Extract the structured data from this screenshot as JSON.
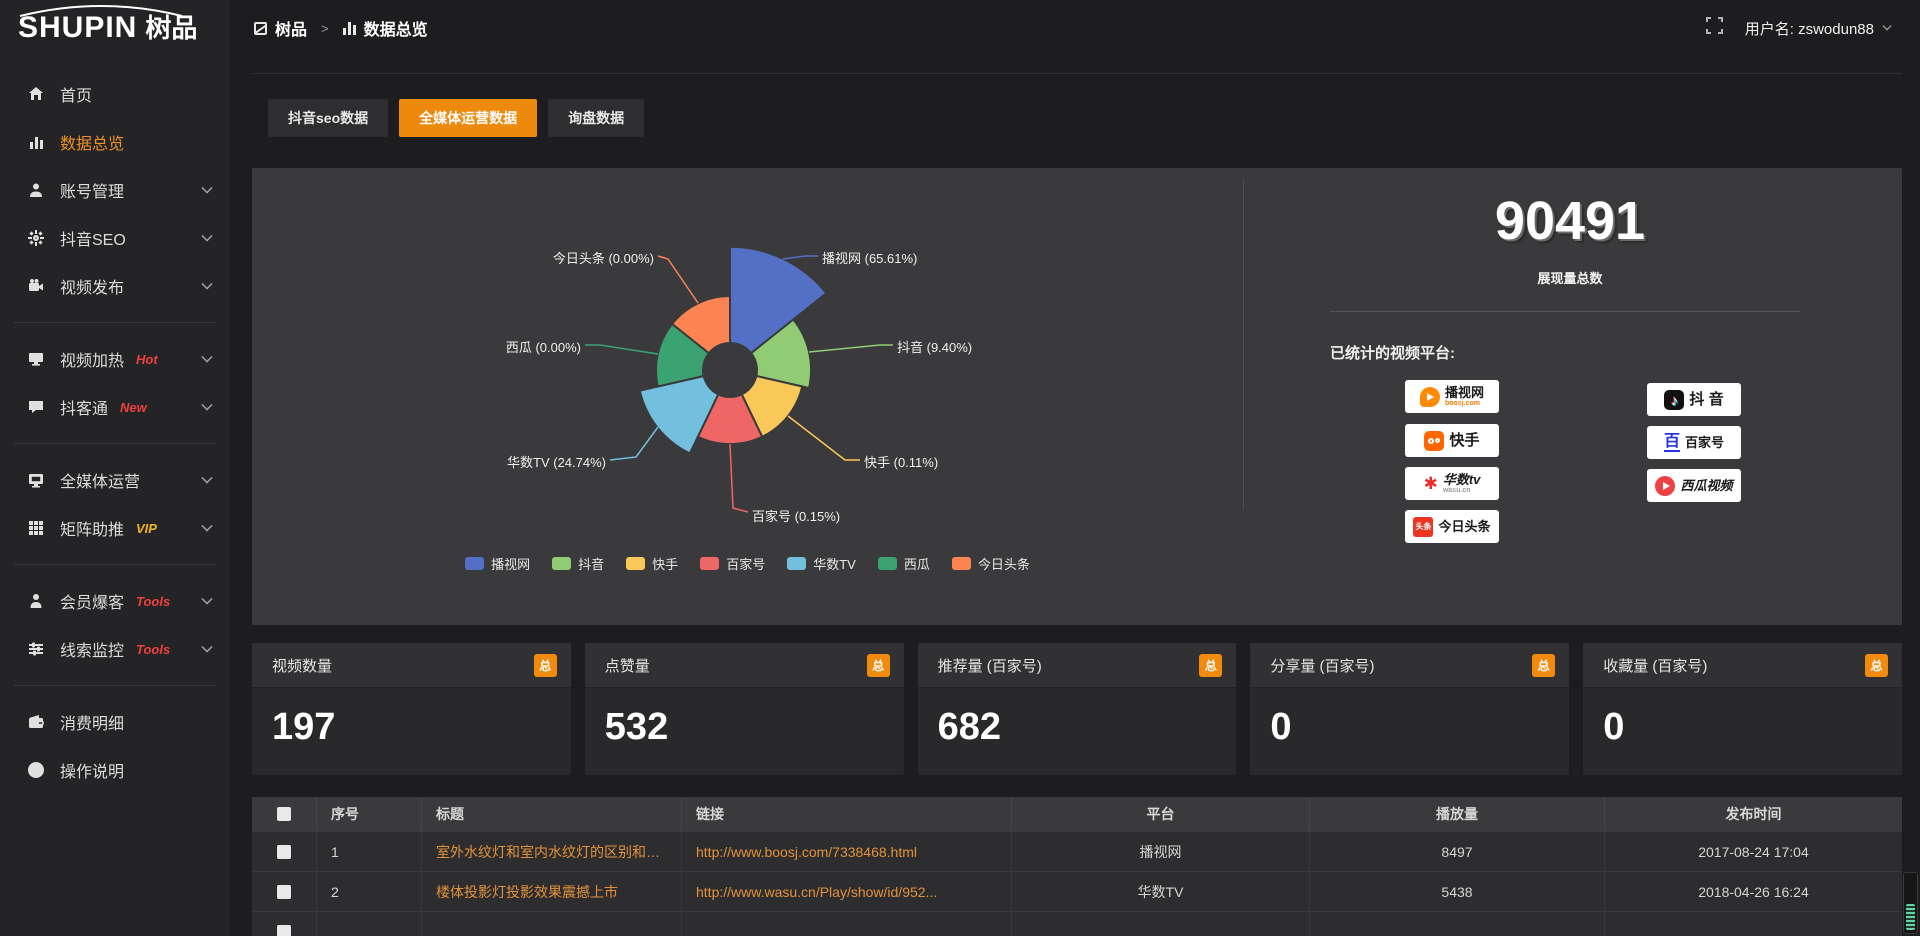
{
  "brand": {
    "logo_en": "SHUPIN",
    "logo_cn": "树品"
  },
  "topbar": {
    "breadcrumb_home": "树品",
    "breadcrumb_sep": ">",
    "breadcrumb_page": "数据总览",
    "username": "用户名: zswodun88"
  },
  "sidebar": {
    "items": [
      {
        "label": "首页"
      },
      {
        "label": "数据总览"
      },
      {
        "label": "账号管理"
      },
      {
        "label": "抖音SEO"
      },
      {
        "label": "视频发布"
      },
      {
        "label": "视频加热",
        "badge": "Hot"
      },
      {
        "label": "抖客通",
        "badge": "New"
      },
      {
        "label": "全媒体运营"
      },
      {
        "label": "矩阵助推",
        "badge": "VIP"
      },
      {
        "label": "会员爆客",
        "badge": "Tools"
      },
      {
        "label": "线索监控",
        "badge": "Tools"
      },
      {
        "label": "消费明细"
      },
      {
        "label": "操作说明"
      }
    ]
  },
  "tabs": [
    {
      "label": "抖音seo数据",
      "active": false
    },
    {
      "label": "全媒体运营数据",
      "active": true
    },
    {
      "label": "询盘数据",
      "active": false
    }
  ],
  "chart_data": {
    "type": "pie",
    "variant": "nightingale-rose",
    "title": "",
    "legend_position": "bottom",
    "series": [
      {
        "name": "播视网",
        "value": 65.61,
        "unit": "%",
        "color": "#5470c6",
        "label": "播视网 (65.61%)"
      },
      {
        "name": "抖音",
        "value": 9.4,
        "unit": "%",
        "color": "#91cc75",
        "label": "抖音 (9.40%)"
      },
      {
        "name": "快手",
        "value": 0.11,
        "unit": "%",
        "color": "#fac858",
        "label": "快手 (0.11%)"
      },
      {
        "name": "百家号",
        "value": 0.15,
        "unit": "%",
        "color": "#ee6666",
        "label": "百家号 (0.15%)"
      },
      {
        "name": "华数TV",
        "value": 24.74,
        "unit": "%",
        "color": "#73c0de",
        "label": "华数TV (24.74%)"
      },
      {
        "name": "西瓜",
        "value": 0.0,
        "unit": "%",
        "color": "#3ba272",
        "label": "西瓜 (0.00%)"
      },
      {
        "name": "今日头条",
        "value": 0.0,
        "unit": "%",
        "color": "#fc8452",
        "label": "今日头条 (0.00%)"
      }
    ]
  },
  "summary": {
    "total_value": "90491",
    "total_label": "展现量总数",
    "platforms_label": "已统计的视频平台:"
  },
  "platforms": {
    "boosj": {
      "name": "播视网",
      "sub": "boosj.com"
    },
    "kuaishou": {
      "name": "快手"
    },
    "wasu": {
      "name": "华数tv",
      "sub": "wasu.cn"
    },
    "toutiao": {
      "name": "今日头条",
      "tag": "头条"
    },
    "douyin": {
      "name": "抖 音"
    },
    "baijia": {
      "name": "百家号",
      "initial": "百"
    },
    "xigua": {
      "name": "西瓜视频"
    }
  },
  "stat_cards": [
    {
      "title": "视频数量",
      "badge": "总",
      "value": "197"
    },
    {
      "title": "点赞量",
      "badge": "总",
      "value": "532"
    },
    {
      "title": "推荐量 (百家号)",
      "badge": "总",
      "value": "682"
    },
    {
      "title": "分享量 (百家号)",
      "badge": "总",
      "value": "0"
    },
    {
      "title": "收藏量 (百家号)",
      "badge": "总",
      "value": "0"
    }
  ],
  "table": {
    "headers": [
      "序号",
      "标题",
      "链接",
      "平台",
      "播放量",
      "发布时间"
    ],
    "rows": [
      {
        "index": "1",
        "title": "室外水纹灯和室内水纹灯的区别和简介",
        "link": "http://www.boosj.com/7338468.html",
        "platform": "播视网",
        "plays": "8497",
        "date": "2017-08-24 17:04"
      },
      {
        "index": "2",
        "title": "楼体投影灯投影效果震撼上市",
        "link": "http://www.wasu.cn/Play/show/id/952...",
        "platform": "华数TV",
        "plays": "5438",
        "date": "2018-04-26 16:24"
      }
    ]
  },
  "accent_colors": {
    "orange": "#ed8a0e",
    "link": "#e2923a",
    "hot_red": "#f23f3f",
    "vip_yellow": "#f0b429"
  }
}
